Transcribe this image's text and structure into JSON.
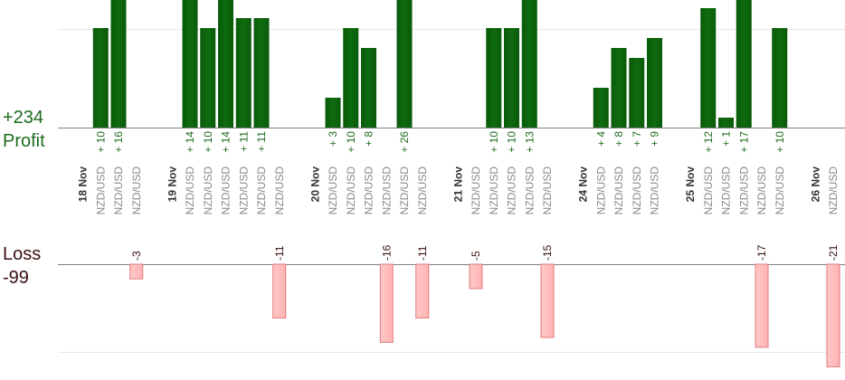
{
  "summary": {
    "profit_total": "+234",
    "profit_label": "Profit",
    "loss_label": "Loss",
    "loss_total": "-99"
  },
  "colors": {
    "profit_bar": "#0f6b0f",
    "profit_text": "#1e6b1e",
    "loss_bar": "#ffb3b3",
    "loss_bar_stroke": "#e07a7a",
    "loss_text": "#3a0f0f",
    "date_text": "#333333",
    "pair_text": "#888888",
    "grid": "#e8e8e8",
    "axis": "#808080"
  },
  "chart_data": {
    "type": "bar",
    "ylim_profit": [
      0,
      20
    ],
    "ylim_loss": [
      -20,
      0
    ],
    "categories": [
      {
        "type": "date",
        "label": "18 Nov"
      },
      {
        "type": "trade",
        "pair": "NZD/USD",
        "value": 10
      },
      {
        "type": "trade",
        "pair": "NZD/USD",
        "value": 16
      },
      {
        "type": "trade",
        "pair": "NZD/USD",
        "value": -3
      },
      {
        "type": "gap"
      },
      {
        "type": "date",
        "label": "19 Nov"
      },
      {
        "type": "trade",
        "pair": "NZD/USD",
        "value": 14
      },
      {
        "type": "trade",
        "pair": "NZD/USD",
        "value": 10
      },
      {
        "type": "trade",
        "pair": "NZD/USD",
        "value": 14
      },
      {
        "type": "trade",
        "pair": "NZD/USD",
        "value": 11
      },
      {
        "type": "trade",
        "pair": "NZD/USD",
        "value": 11
      },
      {
        "type": "trade",
        "pair": "NZD/USD",
        "value": -11
      },
      {
        "type": "gap"
      },
      {
        "type": "date",
        "label": "20 Nov"
      },
      {
        "type": "trade",
        "pair": "NZD/USD",
        "value": 3
      },
      {
        "type": "trade",
        "pair": "NZD/USD",
        "value": 10
      },
      {
        "type": "trade",
        "pair": "NZD/USD",
        "value": 8
      },
      {
        "type": "trade",
        "pair": "NZD/USD",
        "value": -16
      },
      {
        "type": "trade",
        "pair": "NZD/USD",
        "value": 26
      },
      {
        "type": "trade",
        "pair": "NZD/USD",
        "value": -11
      },
      {
        "type": "gap"
      },
      {
        "type": "date",
        "label": "21 Nov"
      },
      {
        "type": "trade",
        "pair": "NZD/USD",
        "value": -5
      },
      {
        "type": "trade",
        "pair": "NZD/USD",
        "value": 10
      },
      {
        "type": "trade",
        "pair": "NZD/USD",
        "value": 10
      },
      {
        "type": "trade",
        "pair": "NZD/USD",
        "value": 13
      },
      {
        "type": "trade",
        "pair": "NZD/USD",
        "value": -15
      },
      {
        "type": "gap"
      },
      {
        "type": "date",
        "label": "24 Nov"
      },
      {
        "type": "trade",
        "pair": "NZD/USD",
        "value": 4
      },
      {
        "type": "trade",
        "pair": "NZD/USD",
        "value": 8
      },
      {
        "type": "trade",
        "pair": "NZD/USD",
        "value": 7
      },
      {
        "type": "trade",
        "pair": "NZD/USD",
        "value": 9
      },
      {
        "type": "gap"
      },
      {
        "type": "date",
        "label": "25 Nov"
      },
      {
        "type": "trade",
        "pair": "NZD/USD",
        "value": 12
      },
      {
        "type": "trade",
        "pair": "NZD/USD",
        "value": 1
      },
      {
        "type": "trade",
        "pair": "NZD/USD",
        "value": 17
      },
      {
        "type": "trade",
        "pair": "NZD/USD",
        "value": -17
      },
      {
        "type": "trade",
        "pair": "NZD/USD",
        "value": 10
      },
      {
        "type": "gap"
      },
      {
        "type": "date",
        "label": "26 Nov"
      },
      {
        "type": "trade",
        "pair": "NZD/USD",
        "value": -21
      }
    ]
  }
}
